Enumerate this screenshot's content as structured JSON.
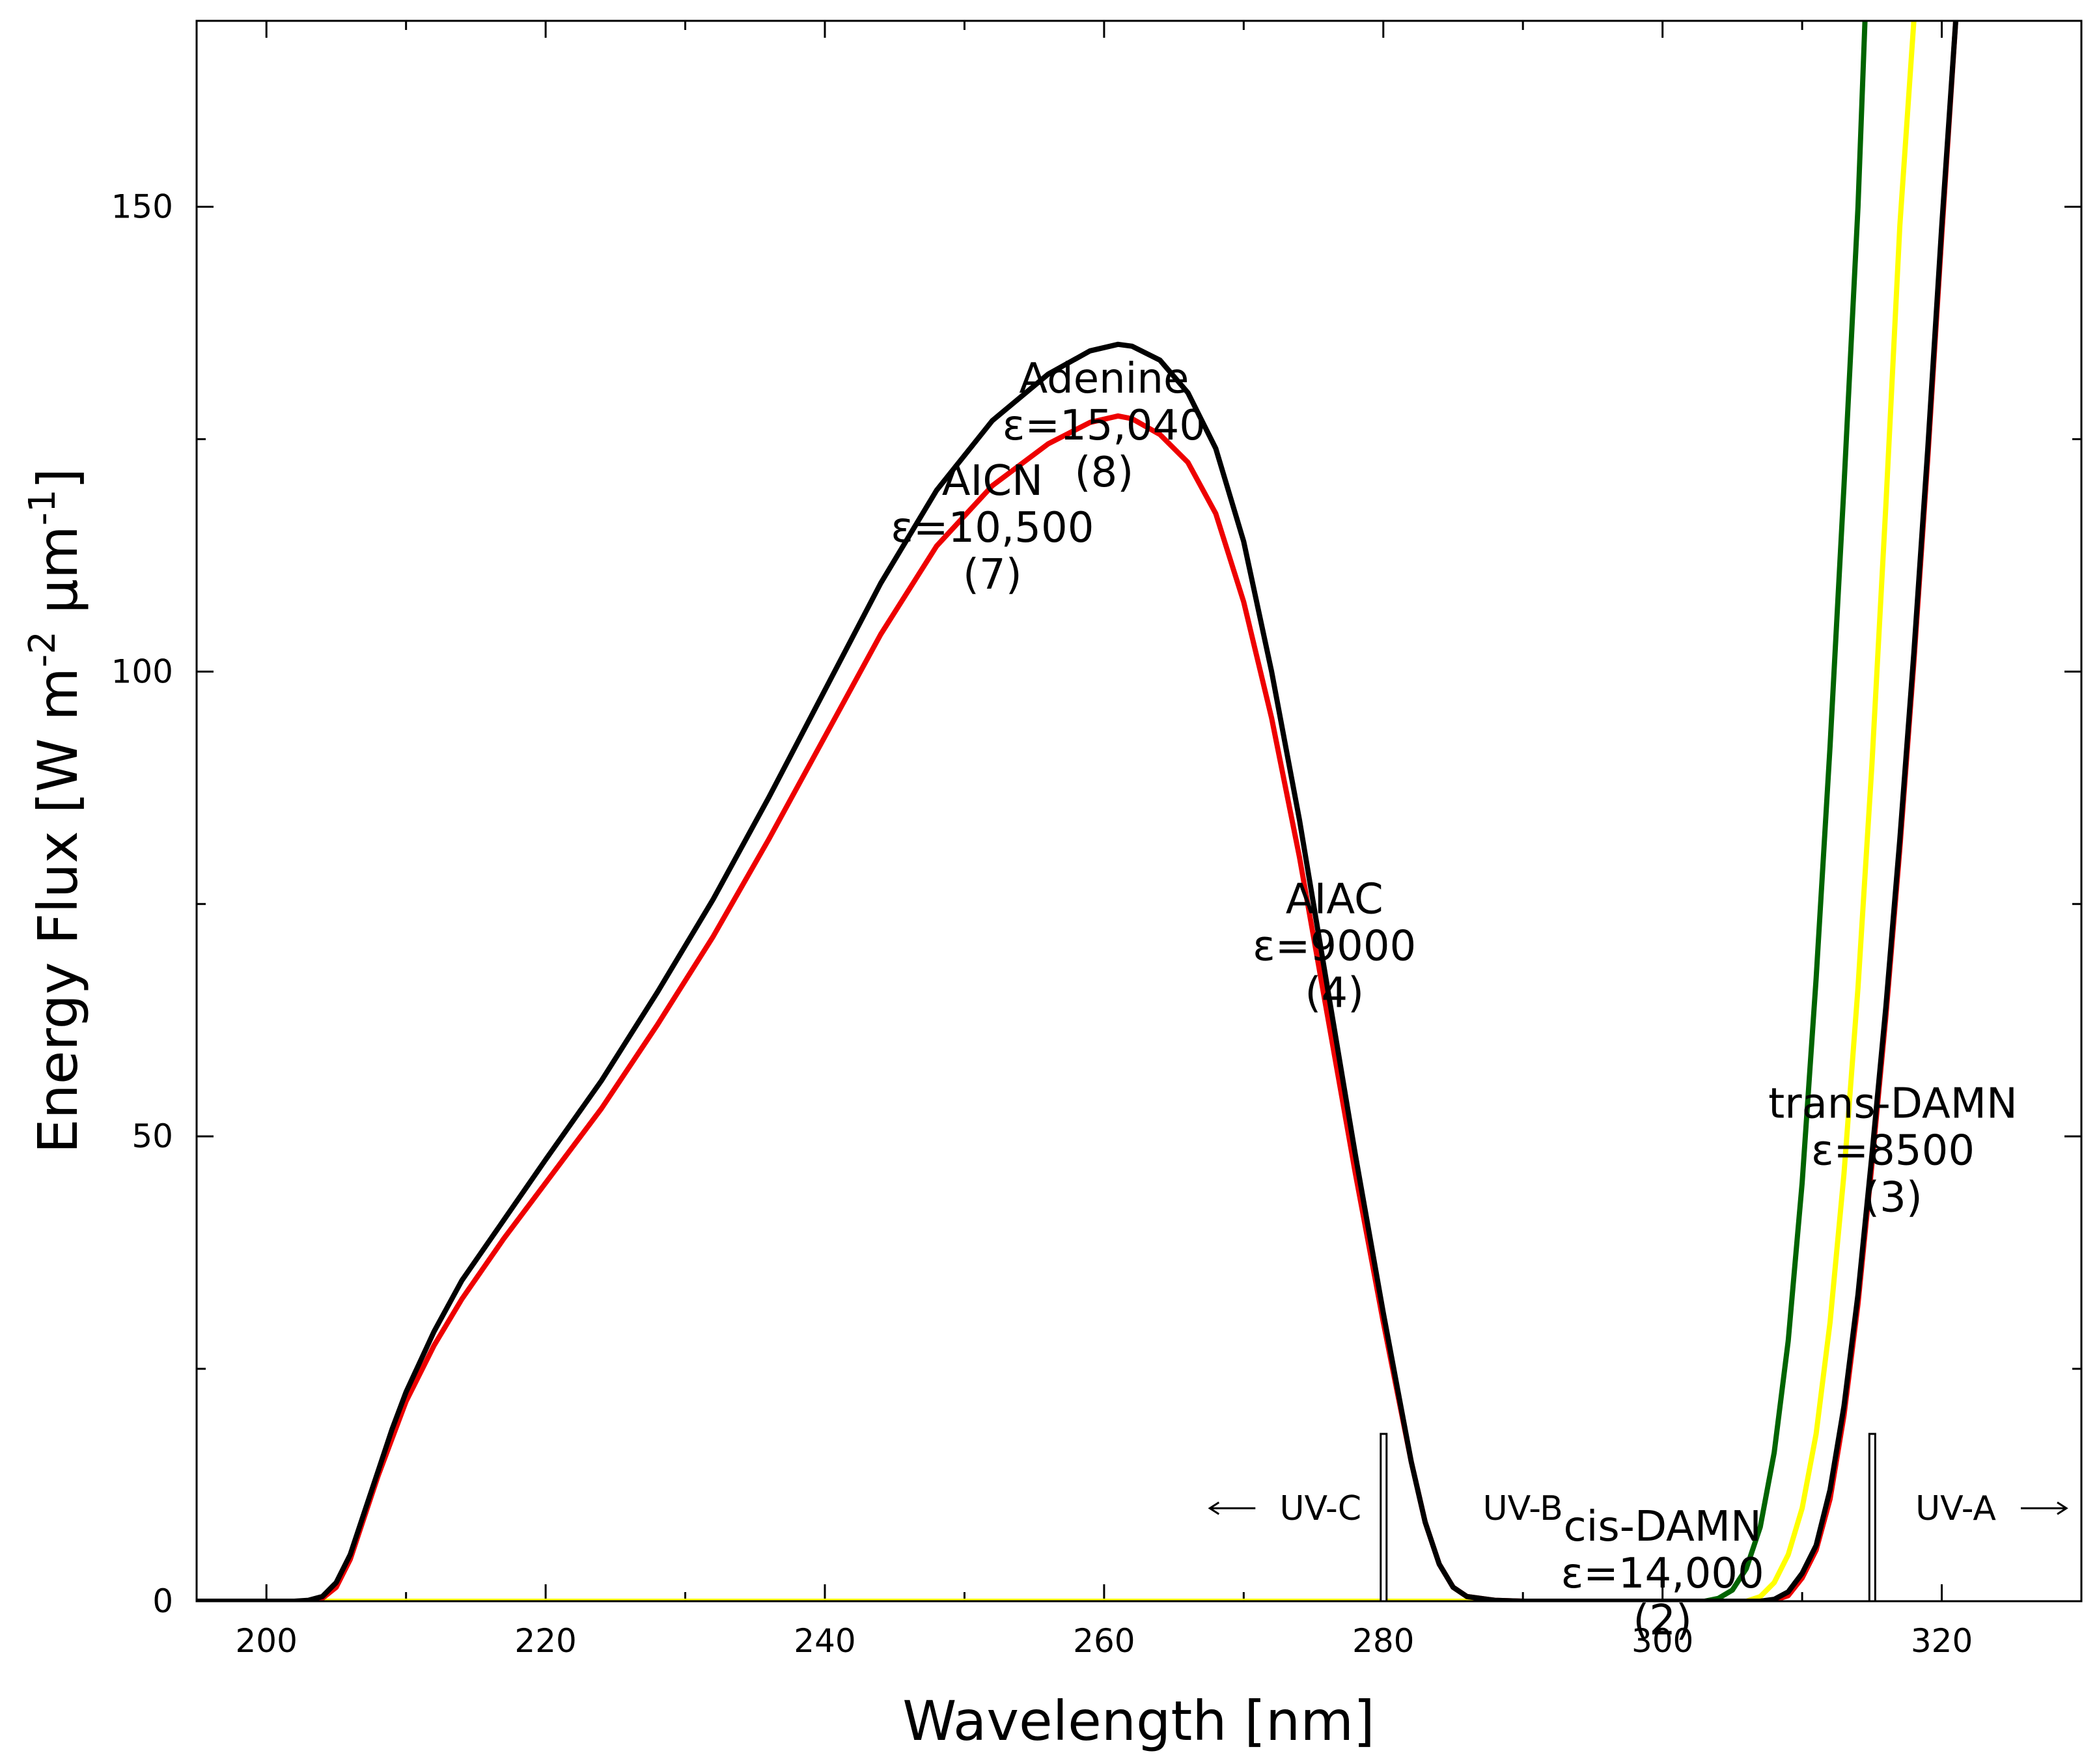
{
  "chart_data": {
    "type": "line",
    "xlabel": "Wavelength [nm]",
    "ylabel_main": "Energy Flux [W m",
    "ylabel_sup1": "-2",
    "ylabel_mid": " µm",
    "ylabel_sup2": "-1",
    "ylabel_end": "]",
    "xlim": [
      195,
      330
    ],
    "ylim": [
      0,
      170
    ],
    "xticks": [
      200,
      220,
      240,
      260,
      280,
      300,
      320
    ],
    "yticks": [
      0,
      50,
      100,
      150
    ],
    "series": [
      {
        "name": "black",
        "color": "#000000",
        "points": [
          [
            195,
            0
          ],
          [
            200,
            0
          ],
          [
            202,
            0
          ],
          [
            203,
            0.1
          ],
          [
            204,
            0.5
          ],
          [
            205,
            2
          ],
          [
            206,
            5
          ],
          [
            207,
            9.5
          ],
          [
            208,
            14
          ],
          [
            209,
            18.5
          ],
          [
            210,
            22.5
          ],
          [
            212,
            29
          ],
          [
            214,
            34.5
          ],
          [
            217,
            41
          ],
          [
            220,
            47.5
          ],
          [
            224,
            56
          ],
          [
            228,
            65.5
          ],
          [
            232,
            75.5
          ],
          [
            236,
            86.5
          ],
          [
            240,
            98
          ],
          [
            244,
            109.5
          ],
          [
            248,
            119.5
          ],
          [
            252,
            127
          ],
          [
            256,
            132
          ],
          [
            259,
            134.5
          ],
          [
            261,
            135.2
          ],
          [
            262,
            135
          ],
          [
            264,
            133.5
          ],
          [
            266,
            130
          ],
          [
            268,
            124
          ],
          [
            270,
            114
          ],
          [
            272,
            100
          ],
          [
            274,
            84
          ],
          [
            276,
            66
          ],
          [
            278,
            48
          ],
          [
            280,
            31
          ],
          [
            281,
            23
          ],
          [
            282,
            15
          ],
          [
            283,
            8.5
          ],
          [
            284,
            4
          ],
          [
            285,
            1.5
          ],
          [
            286,
            0.5
          ],
          [
            288,
            0.1
          ],
          [
            290,
            0
          ],
          [
            300,
            0
          ],
          [
            307,
            0
          ],
          [
            308,
            0.2
          ],
          [
            309,
            1
          ],
          [
            310,
            3
          ],
          [
            311,
            6
          ],
          [
            312,
            12
          ],
          [
            313,
            21
          ],
          [
            314,
            33
          ],
          [
            315,
            48
          ],
          [
            316,
            64
          ],
          [
            317,
            82
          ],
          [
            318,
            102
          ],
          [
            319,
            124
          ],
          [
            320,
            148
          ],
          [
            321,
            170
          ]
        ]
      },
      {
        "name": "red",
        "color": "#ee0000",
        "points": [
          [
            195,
            0
          ],
          [
            200,
            0
          ],
          [
            202,
            0
          ],
          [
            203,
            0
          ],
          [
            204,
            0.3
          ],
          [
            205,
            1.5
          ],
          [
            206,
            4.5
          ],
          [
            207,
            9
          ],
          [
            208,
            13.5
          ],
          [
            209,
            17.5
          ],
          [
            210,
            21.5
          ],
          [
            212,
            27.5
          ],
          [
            214,
            32.5
          ],
          [
            217,
            39
          ],
          [
            220,
            45
          ],
          [
            224,
            53
          ],
          [
            228,
            62
          ],
          [
            232,
            71.5
          ],
          [
            236,
            82
          ],
          [
            240,
            93
          ],
          [
            244,
            104
          ],
          [
            248,
            113.5
          ],
          [
            252,
            120
          ],
          [
            256,
            124.5
          ],
          [
            259,
            126.8
          ],
          [
            261,
            127.5
          ],
          [
            262,
            127.2
          ],
          [
            264,
            125.5
          ],
          [
            266,
            122.5
          ],
          [
            268,
            117
          ],
          [
            270,
            107.5
          ],
          [
            272,
            95
          ],
          [
            274,
            80
          ],
          [
            276,
            63
          ],
          [
            278,
            46
          ],
          [
            280,
            30
          ],
          [
            281,
            22.5
          ],
          [
            282,
            15
          ],
          [
            283,
            8.5
          ],
          [
            284,
            4
          ],
          [
            285,
            1.5
          ],
          [
            286,
            0.5
          ],
          [
            288,
            0.1
          ],
          [
            290,
            0
          ],
          [
            300,
            0
          ],
          [
            307,
            0
          ],
          [
            308,
            0.1
          ],
          [
            309,
            0.6
          ],
          [
            310,
            2.5
          ],
          [
            311,
            5.5
          ],
          [
            312,
            11
          ],
          [
            313,
            20
          ],
          [
            314,
            32
          ],
          [
            315,
            47
          ],
          [
            316,
            63
          ],
          [
            317,
            81
          ],
          [
            318,
            101
          ],
          [
            319,
            123
          ],
          [
            320,
            147
          ],
          [
            321,
            170
          ]
        ]
      },
      {
        "name": "green",
        "color": "#006400",
        "points": [
          [
            195,
            0
          ],
          [
            300,
            0
          ],
          [
            303,
            0
          ],
          [
            304,
            0.3
          ],
          [
            305,
            1.2
          ],
          [
            306,
            3.5
          ],
          [
            307,
            8
          ],
          [
            308,
            16
          ],
          [
            309,
            28
          ],
          [
            310,
            45
          ],
          [
            311,
            67
          ],
          [
            312,
            92
          ],
          [
            313,
            120
          ],
          [
            314,
            150
          ],
          [
            314.5,
            170
          ]
        ]
      },
      {
        "name": "yellow",
        "color": "#ffff00",
        "points": [
          [
            195,
            0
          ],
          [
            300,
            0
          ],
          [
            306,
            0
          ],
          [
            307,
            0.5
          ],
          [
            308,
            2
          ],
          [
            309,
            5
          ],
          [
            310,
            10
          ],
          [
            311,
            18
          ],
          [
            312,
            30
          ],
          [
            313,
            46
          ],
          [
            314,
            66
          ],
          [
            315,
            90
          ],
          [
            316,
            118
          ],
          [
            317,
            148
          ],
          [
            318,
            170
          ]
        ]
      }
    ],
    "annotations": [
      {
        "x": 260,
        "y": 130,
        "lines": [
          "Adenine",
          "ε=15,040",
          "(8)"
        ]
      },
      {
        "x": 252,
        "y": 119,
        "lines": [
          "AICN",
          "ε=10,500",
          "(7)"
        ]
      },
      {
        "x": 276.5,
        "y": 74,
        "lines": [
          "AIAC",
          "ε=9000",
          "(4)"
        ]
      },
      {
        "x": 316.5,
        "y": 52,
        "lines": [
          "trans-DAMN",
          "ε=8500",
          "(3)"
        ]
      },
      {
        "x": 300,
        "y": 6.5,
        "lines": [
          "cis-DAMN",
          "ε=14,000",
          "(2)"
        ]
      }
    ],
    "band_labels": [
      {
        "x": 275.5,
        "y": 10,
        "text": "UV-C",
        "arrow": "left"
      },
      {
        "x": 290,
        "y": 10,
        "text": "UV-B",
        "arrow": "none"
      },
      {
        "x": 321,
        "y": 10,
        "text": "UV-A",
        "arrow": "right"
      }
    ],
    "band_boundaries": [
      280,
      315
    ],
    "band_boundary_height": 18
  }
}
